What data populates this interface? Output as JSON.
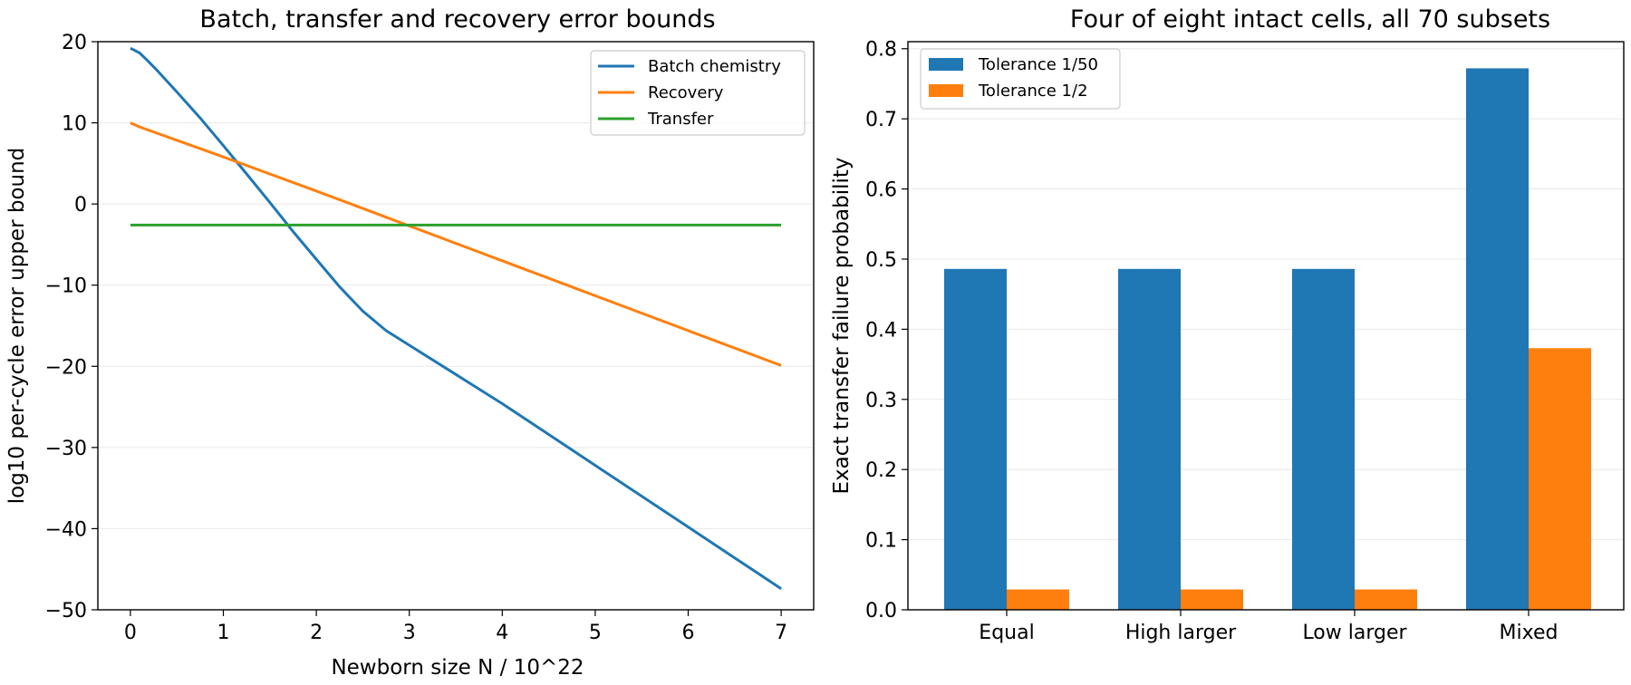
{
  "chart_data": [
    {
      "type": "line",
      "title": "Batch, transfer and recovery error bounds",
      "xlabel": "Newborn size N / 10^22",
      "ylabel": "log10 per-cycle error upper bound",
      "xlim": [
        -0.35,
        7.35
      ],
      "ylim": [
        -50,
        20
      ],
      "xticks": [
        "0",
        "1",
        "2",
        "3",
        "4",
        "5",
        "6",
        "7"
      ],
      "yticks": [
        "20",
        "10",
        "0",
        "−10",
        "−20",
        "−30",
        "−40",
        "−50"
      ],
      "grid": "horizontal",
      "legend_position": "top-right",
      "series": [
        {
          "name": "Batch chemistry",
          "color": "#1f77b4",
          "x": [
            0,
            0.1,
            0.2,
            0.3,
            0.5,
            0.75,
            1.0,
            1.25,
            1.5,
            1.75,
            2.0,
            2.25,
            2.5,
            2.75,
            3.0,
            3.5,
            4.0,
            4.5,
            5.0,
            5.5,
            6.0,
            6.5,
            7.0
          ],
          "y": [
            19.2,
            18.6,
            17.5,
            16.3,
            13.8,
            10.6,
            7.2,
            3.7,
            0.2,
            -3.4,
            -6.8,
            -10.2,
            -13.2,
            -15.6,
            -17.4,
            -21.0,
            -24.6,
            -28.4,
            -32.2,
            -36.0,
            -39.8,
            -43.6,
            -47.4
          ]
        },
        {
          "name": "Recovery",
          "color": "#ff7f0e",
          "x": [
            0,
            0.1,
            1,
            2,
            3,
            4,
            5,
            6,
            7
          ],
          "y": [
            10.0,
            9.5,
            5.8,
            1.6,
            -2.7,
            -7.0,
            -11.3,
            -15.6,
            -19.9
          ]
        },
        {
          "name": "Transfer",
          "color": "#2ca02c",
          "x": [
            0,
            7
          ],
          "y": [
            -2.6,
            -2.6
          ]
        }
      ]
    },
    {
      "type": "bar",
      "title": "Four of eight intact cells, all 70 subsets",
      "xlabel": "",
      "ylabel": "Exact transfer failure probability",
      "ylim": [
        0,
        0.81
      ],
      "yticks": [
        "0.0",
        "0.1",
        "0.2",
        "0.3",
        "0.4",
        "0.5",
        "0.6",
        "0.7",
        "0.8"
      ],
      "categories": [
        "Equal",
        "High larger",
        "Low larger",
        "Mixed"
      ],
      "grid": "horizontal",
      "legend_position": "top-left",
      "series": [
        {
          "name": "Tolerance 1/50",
          "color": "#1f77b4",
          "values": [
            0.486,
            0.486,
            0.486,
            0.772
          ]
        },
        {
          "name": "Tolerance 1/2",
          "color": "#ff7f0e",
          "values": [
            0.029,
            0.029,
            0.029,
            0.373
          ]
        }
      ]
    }
  ]
}
